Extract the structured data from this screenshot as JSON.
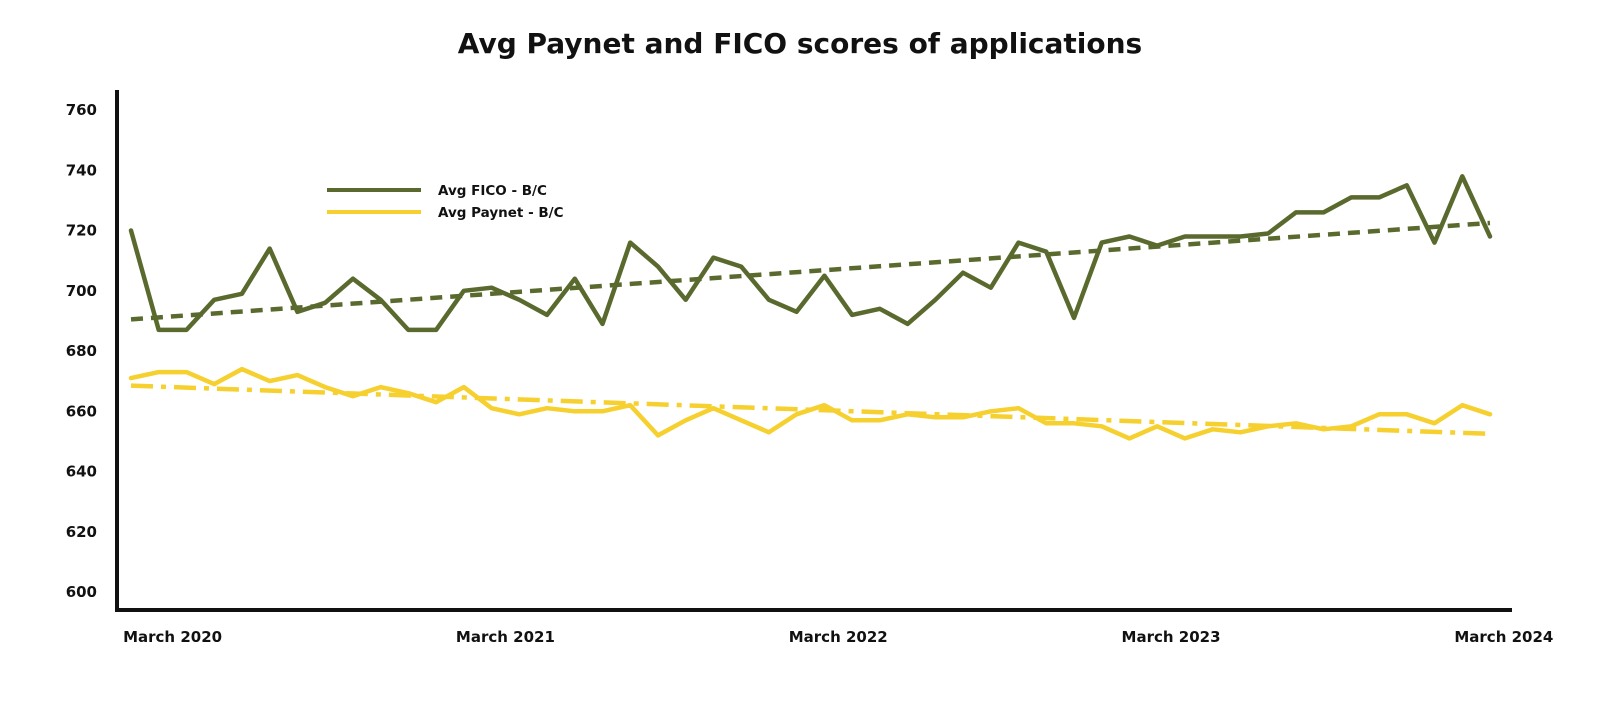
{
  "colors": {
    "fico": "#5a6a2e",
    "paynet": "#f5d02e",
    "axis": "#111111",
    "background": "#ffffff"
  },
  "chart_data": {
    "type": "line",
    "title": "Avg Paynet and FICO scores of applications",
    "xlabel": "",
    "ylabel": "",
    "ylim": [
      600,
      760
    ],
    "y_ticks": [
      "600",
      "620",
      "640",
      "660",
      "680",
      "700",
      "720",
      "740",
      "760"
    ],
    "x_tick_labels": [
      "March 2020",
      "March 2021",
      "March 2022",
      "March 2023",
      "March 2024"
    ],
    "x_tick_positions": [
      1.5,
      13.5,
      25.5,
      37.5,
      49.5
    ],
    "grid": false,
    "legend_position": "top-left",
    "series": [
      {
        "name": "Avg FICO - B/C",
        "style": "solid",
        "color": "#5a6a2e",
        "values": [
          720,
          687,
          687,
          697,
          699,
          714,
          693,
          696,
          704,
          697,
          687,
          687,
          700,
          701,
          697,
          692,
          704,
          689,
          716,
          708,
          697,
          711,
          708,
          697,
          693,
          705,
          692,
          694,
          689,
          697,
          706,
          701,
          716,
          713,
          691,
          716,
          718,
          715,
          718,
          718,
          718,
          719,
          726,
          726,
          731,
          731,
          735,
          716,
          738,
          718
        ]
      },
      {
        "name": "Avg Paynet - B/C",
        "style": "solid",
        "color": "#f5d02e",
        "values": [
          671,
          673,
          673,
          669,
          674,
          670,
          672,
          668,
          665,
          668,
          666,
          663,
          668,
          661,
          659,
          661,
          660,
          660,
          662,
          652,
          657,
          661,
          657,
          653,
          659,
          662,
          657,
          657,
          659,
          658,
          658,
          660,
          661,
          656,
          656,
          655,
          651,
          655,
          651,
          654,
          653,
          655,
          656,
          654,
          655,
          659,
          659,
          656,
          662,
          659
        ]
      }
    ],
    "trendlines": [
      {
        "style": "dashed",
        "color": "#5a6a2e",
        "values": [
          690.5,
          722.5
        ]
      },
      {
        "style": "dashdot",
        "color": "#f5d02e",
        "values": [
          668.5,
          652.5
        ]
      }
    ]
  }
}
